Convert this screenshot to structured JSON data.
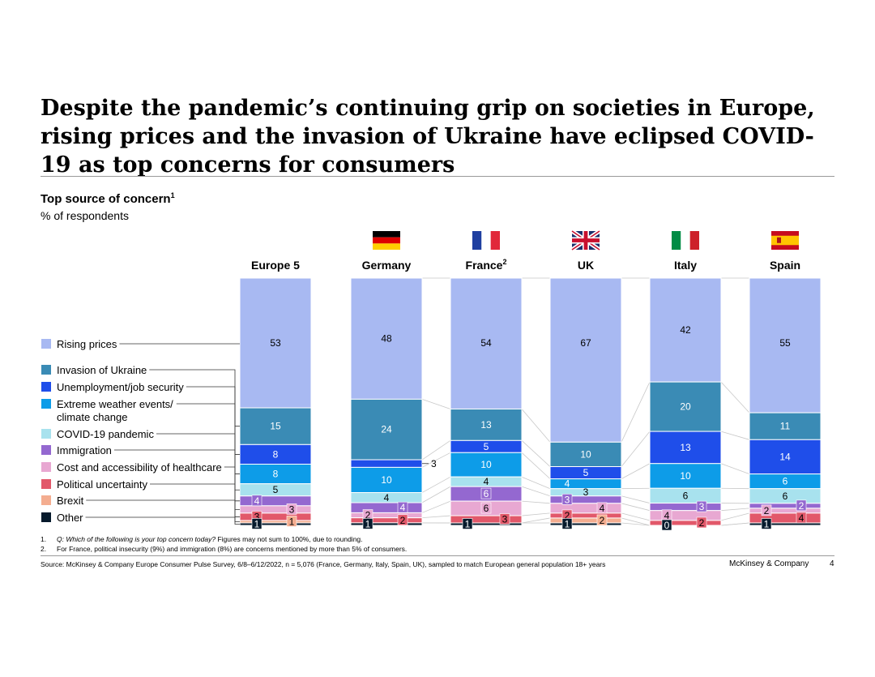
{
  "title": "Despite the pandemic’s continuing grip on societies in Europe, rising prices and the invasion of Ukraine have eclipsed COVID-19 as top concerns for consumers",
  "chart_data": {
    "type": "bar",
    "title": "Top source of concern",
    "title_footnote_ref": "1",
    "units": "% of respondents",
    "stacked": true,
    "categories": [
      "Europe 5",
      "Germany",
      "France",
      "UK",
      "Italy",
      "Spain"
    ],
    "category_footnote_refs": [
      "",
      "",
      "2",
      "",
      "",
      ""
    ],
    "series": [
      {
        "name": "Rising prices",
        "color": "#a8b9f2",
        "values": [
          53,
          48,
          54,
          67,
          42,
          55
        ]
      },
      {
        "name": "Invasion of Ukraine",
        "color": "#3a8bb5",
        "values": [
          15,
          24,
          13,
          10,
          20,
          11
        ]
      },
      {
        "name": "Unemployment/job security",
        "color": "#1f4eea",
        "values": [
          8,
          3,
          5,
          5,
          13,
          14
        ]
      },
      {
        "name": "Extreme weather events/ climate change",
        "color": "#0d9ce8",
        "values": [
          8,
          10,
          10,
          4,
          10,
          6
        ]
      },
      {
        "name": "COVID-19 pandemic",
        "color": "#a8e2ee",
        "values": [
          5,
          4,
          4,
          3,
          6,
          6
        ]
      },
      {
        "name": "Immigration",
        "color": "#9468d0",
        "values": [
          4,
          4,
          6,
          3,
          3,
          2
        ]
      },
      {
        "name": "Cost and accessibility of healthcare",
        "color": "#e8a8d2",
        "values": [
          3,
          2,
          6,
          4,
          4,
          2
        ]
      },
      {
        "name": "Political uncertainty",
        "color": "#e2586a",
        "values": [
          3,
          2,
          3,
          2,
          2,
          4
        ]
      },
      {
        "name": "Brexit",
        "color": "#f4ad90",
        "values": [
          1,
          0,
          0,
          2,
          0,
          0
        ]
      },
      {
        "name": "Other",
        "color": "#061a2c",
        "values": [
          1,
          1,
          1,
          1,
          0,
          1
        ]
      }
    ],
    "ylim": [
      0,
      100
    ]
  },
  "footnotes": [
    {
      "num": "1.",
      "italic": "Q: Which of the following is your top concern today?",
      "text": " Figures may not sum to 100%, due to rounding."
    },
    {
      "num": "2.",
      "italic": "",
      "text": "For France, political insecurity (9%) and immigration (8%) are concerns mentioned by more than 5% of consumers."
    }
  ],
  "source": "Source: McKinsey & Company Europe Consumer Pulse Survey, 6/8–6/12/2022, n = 5,076 (France, Germany, Italy, Spain, UK), sampled to match European general population 18+ years",
  "brand": "McKinsey & Company",
  "page_number": "4"
}
